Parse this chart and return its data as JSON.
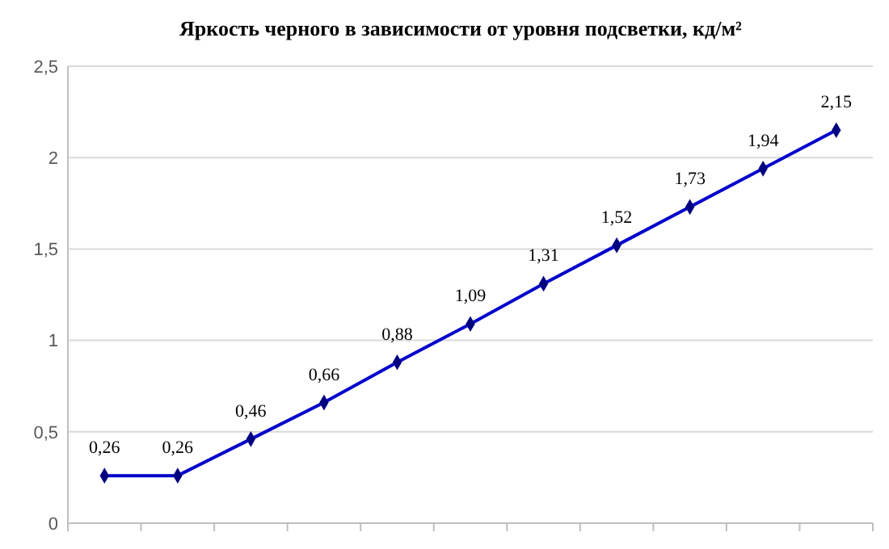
{
  "chart_data": {
    "type": "line",
    "title": "Яркость черного в зависимости от уровня подсветки, кд/м²",
    "categories": [
      null,
      null,
      null,
      null,
      null,
      null,
      null,
      null,
      null,
      null,
      null
    ],
    "series": [
      {
        "color": "#0000cc",
        "values": [
          0.26,
          0.26,
          0.46,
          0.66,
          0.88,
          1.09,
          1.31,
          1.52,
          1.73,
          1.94,
          2.15
        ],
        "value_labels": [
          "0,26",
          "0,26",
          "0,46",
          "0,66",
          "0,88",
          "1,09",
          "1,31",
          "1,52",
          "1,73",
          "1,94",
          "2,15"
        ]
      }
    ],
    "ylim": [
      0,
      2.5
    ],
    "yticks": [
      0,
      {
        "value": 0.5,
        "label": "0,5"
      },
      1,
      {
        "value": 1.5,
        "label": "1,5"
      },
      2,
      {
        "value": 2.5,
        "label": "2,5"
      }
    ],
    "grid": "y",
    "marker": "diamond",
    "line_style": "solid"
  }
}
